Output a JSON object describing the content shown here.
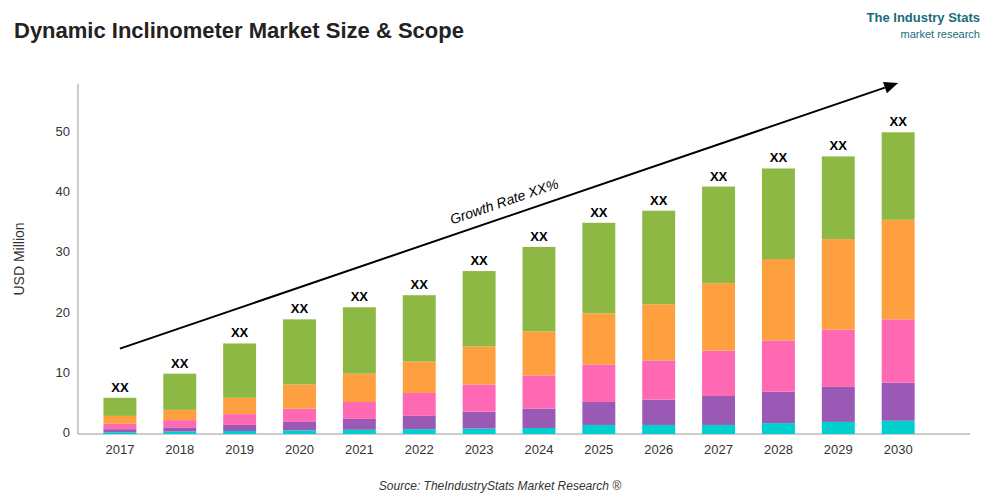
{
  "chart_data": {
    "type": "bar",
    "stacked": true,
    "grid": false,
    "title": "Dynamic Inclinometer Market Size & Scope",
    "ylabel": "USD Million",
    "source": "Source: TheIndustryStats Market Research ®",
    "logo": [
      "The Industry Stats",
      "market research"
    ],
    "growth_label": "Growth Rate XX%",
    "bar_labels": [
      "XX",
      "XX",
      "XX",
      "XX",
      "XX",
      "XX",
      "XX",
      "XX",
      "XX",
      "XX",
      "XX",
      "XX",
      "XX",
      "XX"
    ],
    "x": [
      2017,
      2018,
      2019,
      2020,
      2021,
      2022,
      2023,
      2024,
      2025,
      2026,
      2027,
      2028,
      2029,
      2030
    ],
    "xlim": [
      2016.3,
      2031.2
    ],
    "xticks": [
      2017,
      2018,
      2019,
      2020,
      2021,
      2022,
      2023,
      2024,
      2025,
      2026,
      2027,
      2028,
      2029,
      2030
    ],
    "ylim": [
      0,
      58
    ],
    "yticks": [
      0,
      10,
      20,
      30,
      40,
      50
    ],
    "series": [
      {
        "color": "#00CFCF",
        "values": [
          0.3,
          0.4,
          0.5,
          0.6,
          0.7,
          0.8,
          0.9,
          1.0,
          1.5,
          1.5,
          1.5,
          1.8,
          2.0,
          2.2
        ]
      },
      {
        "color": "#9B59B6",
        "values": [
          0.5,
          0.7,
          1.0,
          1.4,
          1.8,
          2.2,
          2.8,
          3.2,
          3.8,
          4.2,
          4.8,
          5.2,
          5.8,
          6.3
        ]
      },
      {
        "color": "#FF69B4",
        "values": [
          0.9,
          1.2,
          1.8,
          2.2,
          2.8,
          3.8,
          4.5,
          5.5,
          6.2,
          6.5,
          7.5,
          8.5,
          9.5,
          10.5
        ]
      },
      {
        "color": "#FFA040",
        "values": [
          1.3,
          1.7,
          2.7,
          4.0,
          4.7,
          5.2,
          6.3,
          7.3,
          8.5,
          9.3,
          11.2,
          13.5,
          15.0,
          16.5
        ]
      },
      {
        "color": "#8DB843",
        "values": [
          3.0,
          6.0,
          9.0,
          10.8,
          11.0,
          11.0,
          12.5,
          14.0,
          15.0,
          15.5,
          16.0,
          15.0,
          13.7,
          14.5
        ]
      }
    ]
  }
}
